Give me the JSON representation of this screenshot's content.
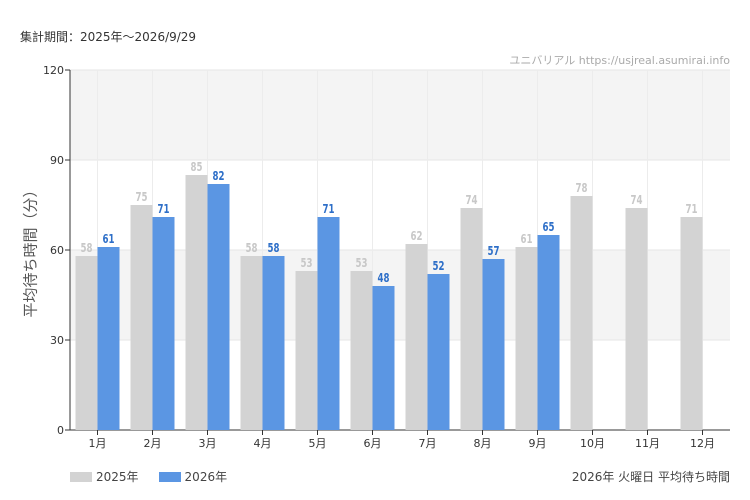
{
  "header": {
    "period": "集計期間：2025年～2026/9/29",
    "credit": "ユニバリアル  https://usjreal.asumirai.info"
  },
  "caption": "2026年 火曜日 平均待ち時間",
  "chart_data": {
    "type": "bar",
    "title": "",
    "ylabel": "平均待ち時間（分）",
    "xlabel": "",
    "ylim": [
      0,
      120
    ],
    "yticks": [
      0,
      30,
      60,
      90,
      120
    ],
    "grid": true,
    "legend": "bottom-left",
    "categories": [
      "1月",
      "2月",
      "3月",
      "4月",
      "5月",
      "6月",
      "7月",
      "8月",
      "9月",
      "10月",
      "11月",
      "12月"
    ],
    "series": [
      {
        "name": "2025年",
        "color": "#d3d3d3",
        "label_color": "#c8c8c8",
        "values": [
          58,
          75,
          85,
          58,
          53,
          53,
          62,
          74,
          61,
          78,
          74,
          71
        ]
      },
      {
        "name": "2026年",
        "color": "#5b96e3",
        "label_color": "#2e6fc8",
        "values": [
          61,
          71,
          82,
          58,
          71,
          48,
          52,
          57,
          65,
          null,
          null,
          null
        ]
      }
    ]
  }
}
